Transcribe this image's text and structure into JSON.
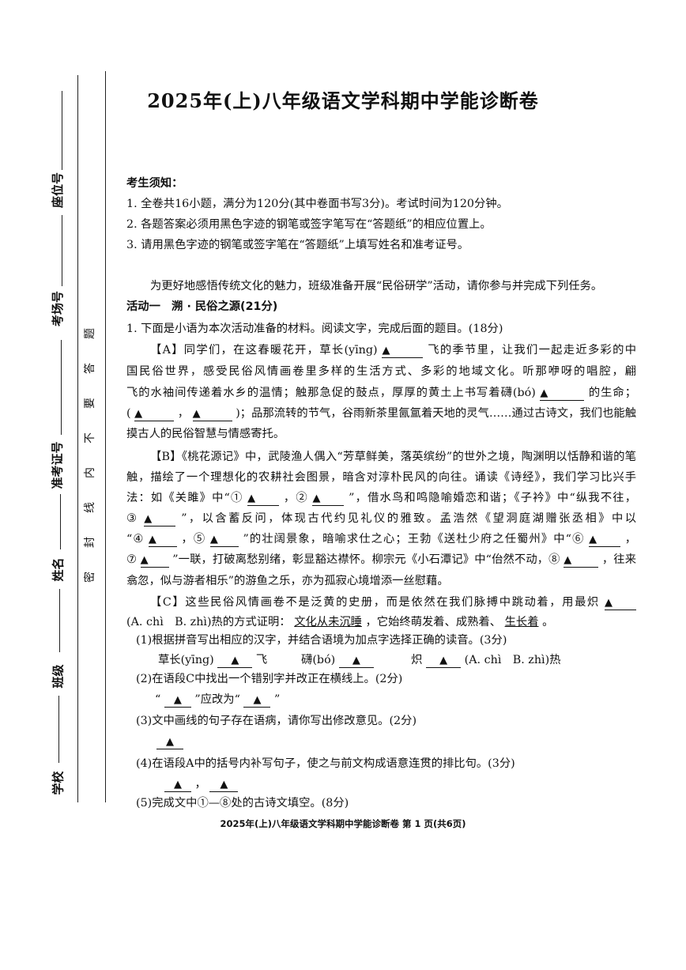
{
  "title": "2025年(上)八年级语文学科期中学能诊断卷",
  "margin": {
    "labels": [
      "座位号",
      "考场号",
      "准考证号",
      "姓名",
      "班级",
      "学校"
    ],
    "seal_text": [
      "密",
      "封",
      "线",
      "内",
      "不",
      "要",
      "答",
      "题"
    ]
  },
  "notice": {
    "heading": "考生须知：",
    "items": [
      "1. 全卷共16小题，满分为120分(其中卷面书写3分)。考试时间为120分钟。",
      "2. 各题答案必须用黑色字迹的钢笔或签字笔写在“答题纸”的相应位置上。",
      "3. 请用黑色字迹的钢笔或签字笔在“答题纸”上填写姓名和准考证号。"
    ]
  },
  "intro": "为更好地感悟传统文化的魅力，班级准备开展“民俗研学”活动，请你参与并完成下列任务。",
  "activity": "活动一　溯 · 民俗之源(21分)",
  "question1": "1. 下面是小语为本次活动准备的材料。阅读文字，完成后面的题目。(18分)",
  "blank_mark": "▲",
  "lines": [
    {
      "cls": "just",
      "indent": true,
      "segs": [
        {
          "t": "【A】同学们，在这春暖花开，草长(yīng)"
        },
        {
          "b": "▲",
          "w": 52
        },
        {
          "t": "飞的季节里，让我们一起走近多彩的中"
        }
      ]
    },
    {
      "cls": "just",
      "segs": [
        {
          "t": "国民俗世界，感受民俗风情画卷里多样的生活方式、多彩的地域文化。听那咿呀的唱腔，翩"
        }
      ]
    },
    {
      "cls": "just",
      "segs": [
        {
          "t": "飞的水袖间传递着水乡的温情；触那急促的鼓点，厚厚的黄土上书写着礴(bó)"
        },
        {
          "b": "▲",
          "w": 56
        },
        {
          "t": "的生命；"
        }
      ]
    },
    {
      "cls": "just",
      "segs": [
        {
          "t": "("
        },
        {
          "b": "▲",
          "w": 50
        },
        {
          "t": "，"
        },
        {
          "b": "▲",
          "w": 50
        },
        {
          "t": ")；品那流转的节气，谷雨新茶里氤氲着天地的灵气……通过古诗文，我们也能触"
        }
      ]
    },
    {
      "cls": "",
      "segs": [
        {
          "t": "摸古人的民俗智慧与情感寄托。"
        }
      ]
    },
    {
      "cls": "just",
      "indent": true,
      "segs": [
        {
          "t": "【B】《桃花源记》中，武陵渔人偶入“芳草鲜美，落英缤纷”的世外之境，陶渊明以恬静和谐的笔"
        }
      ]
    },
    {
      "cls": "just",
      "segs": [
        {
          "t": "触，描绘了一个理想化的农耕社会图景，暗含对淳朴民风的向往。诵读《诗经》，我们学习比兴手"
        }
      ]
    },
    {
      "cls": "just",
      "segs": [
        {
          "t": "法：如《关雎》中“①"
        },
        {
          "b": "▲",
          "w": 40
        },
        {
          "t": "，②"
        },
        {
          "b": "▲",
          "w": 40
        },
        {
          "t": "”，借水鸟和鸣隐喻婚恋和谐；《子衿》中“纵我不往，"
        }
      ]
    },
    {
      "cls": "just",
      "segs": [
        {
          "t": "③"
        },
        {
          "b": "▲",
          "w": 40
        },
        {
          "t": "”，以含蓄反问，体现古代约见礼仪的雅致。孟浩然《望洞庭湖赠张丞相》中以"
        }
      ]
    },
    {
      "cls": "just",
      "segs": [
        {
          "t": "“④"
        },
        {
          "b": "▲",
          "w": 36
        },
        {
          "t": "，⑤"
        },
        {
          "b": "▲",
          "w": 36
        },
        {
          "t": "”的壮阔景象，暗喻求仕之心；王勃《送杜少府之任蜀州》中“⑥"
        },
        {
          "b": "▲",
          "w": 40
        },
        {
          "t": "，"
        }
      ]
    },
    {
      "cls": "just",
      "segs": [
        {
          "t": "⑦"
        },
        {
          "b": "▲",
          "w": 36
        },
        {
          "t": "”一联，打破离愁别绪，彰显豁达襟怀。柳宗元《小石潭记》中“佁然不动，⑧"
        },
        {
          "b": "▲",
          "w": 44
        },
        {
          "t": "，往来"
        }
      ]
    },
    {
      "cls": "",
      "segs": [
        {
          "t": "翕忽，似与游者相乐”的游鱼之乐，亦为孤寂心境增添一丝慰藉。"
        }
      ]
    },
    {
      "cls": "just",
      "indent": true,
      "segs": [
        {
          "t": "【C】这些民俗风情画卷不是泛黄的史册，而是依然在我们脉搏中跳动着，用最炽"
        },
        {
          "b": "▲",
          "w": 40
        }
      ]
    },
    {
      "cls": "",
      "segs": [
        {
          "t": "(A. chì　B. zhì)热的方式证明："
        },
        {
          "u": "文化从未沉睡"
        },
        {
          "t": "，它始终萌发着、成熟着、"
        },
        {
          "u": "生长着"
        },
        {
          "t": "。"
        }
      ]
    }
  ],
  "sub_questions": [
    {
      "text": "(1)根据拼音写出相应的汉字，并结合语境为加点字选择正确的读音。(3分)",
      "answer": [
        {
          "t": "草长(yīng)"
        },
        {
          "b": "▲",
          "w": 44
        },
        {
          "t": "飞　　　礴(bó)"
        },
        {
          "b": "▲",
          "w": 44
        },
        {
          "t": "　　　炽"
        },
        {
          "b": "▲",
          "w": 44
        },
        {
          "t": "(A. chì　B. zhì)热"
        }
      ]
    },
    {
      "text": "(2)在语段C中找出一个错别字并改正在横线上。(2分)",
      "answer": [
        {
          "t": "“"
        },
        {
          "b": "▲",
          "w": 34
        },
        {
          "t": "”应改为“"
        },
        {
          "b": "▲",
          "w": 34
        },
        {
          "t": "”"
        }
      ]
    },
    {
      "text": "(3)文中画线的句子存在语病，请你写出修改意见。(2分)",
      "answer": [
        {
          "b": "▲",
          "w": 34
        }
      ]
    },
    {
      "text": "(4)在语段A中的括号内补写句子，使之与前文构成语意连贯的排比句。(3分)",
      "answer": [
        {
          "b": "▲",
          "w": 34
        },
        {
          "t": "，"
        },
        {
          "b": "▲",
          "w": 36
        }
      ]
    },
    {
      "text": "(5)完成文中①—⑧处的古诗文填空。(8分)",
      "answer": []
    }
  ],
  "footer": "2025年(上)八年级语文学科期中学能诊断卷 第 1 页(共6页)"
}
